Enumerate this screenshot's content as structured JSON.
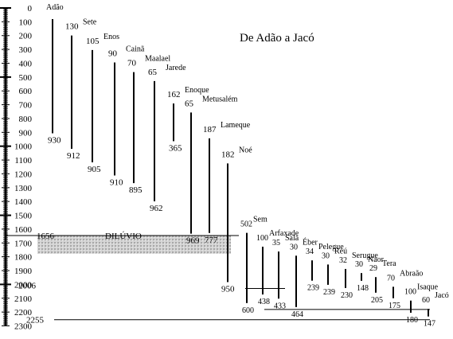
{
  "title": "De Adão a Jacó",
  "axis": {
    "ticks": [
      "0",
      "100",
      "200",
      "300",
      "400",
      "500",
      "600",
      "700",
      "800",
      "900",
      "1000",
      "1100",
      "1200",
      "1300",
      "1400",
      "1500",
      "1600",
      "1700",
      "1800",
      "1900",
      "2000",
      "2100",
      "2200",
      "2300"
    ]
  },
  "flood": {
    "label": "DILÚVIO",
    "year_label": "1656",
    "year": 1656,
    "zone_color": "#b8b8b8"
  },
  "markers": [
    {
      "label": "2006",
      "year": 2006
    },
    {
      "label": "2255",
      "year": 2255
    }
  ],
  "patriarchs": [
    {
      "name": "Adão",
      "birth": 0,
      "death": 930,
      "father_age": null,
      "lifespan_label": "930"
    },
    {
      "name": "Sete",
      "birth": 130,
      "death": 1042,
      "father_age": "130",
      "lifespan_label": "912"
    },
    {
      "name": "Enos",
      "birth": 235,
      "death": 1140,
      "father_age": "105",
      "lifespan_label": "905"
    },
    {
      "name": "Cainã",
      "birth": 325,
      "death": 1235,
      "father_age": "90",
      "lifespan_label": "910"
    },
    {
      "name": "Maalael",
      "birth": 395,
      "death": 1290,
      "father_age": "70",
      "lifespan_label": "895"
    },
    {
      "name": "Jarede",
      "birth": 460,
      "death": 1422,
      "father_age": "65",
      "lifespan_label": "962"
    },
    {
      "name": "Enoque",
      "birth": 622,
      "death": 987,
      "father_age": "162",
      "lifespan_label": "365"
    },
    {
      "name": "Metusalém",
      "birth": 687,
      "death": 1656,
      "father_age": "65",
      "lifespan_label": "969"
    },
    {
      "name": "Lameque",
      "birth": 874,
      "death": 1651,
      "father_age": "187",
      "lifespan_label": "777"
    },
    {
      "name": "Noé",
      "birth": 1056,
      "death": 2006,
      "father_age": "182",
      "lifespan_label": "950"
    },
    {
      "name": "Sem",
      "birth": 1558,
      "death": 2158,
      "father_age": "502",
      "lifespan_label": "600"
    },
    {
      "name": "Arfaxade",
      "birth": 1658,
      "death": 2096,
      "father_age": "100",
      "lifespan_label": "438"
    },
    {
      "name": "Salá",
      "birth": 1693,
      "death": 2126,
      "father_age": "35",
      "lifespan_label": "433"
    },
    {
      "name": "Éber",
      "birth": 1723,
      "death": 2187,
      "father_age": "30",
      "lifespan_label": "464"
    },
    {
      "name": "Pelegue",
      "birth": 1757,
      "death": 1996,
      "father_age": "34",
      "lifespan_label": "239"
    },
    {
      "name": "Reú",
      "birth": 1787,
      "death": 2026,
      "father_age": "30",
      "lifespan_label": "239"
    },
    {
      "name": "Serugue",
      "birth": 1819,
      "death": 2049,
      "father_age": "32",
      "lifespan_label": "230"
    },
    {
      "name": "Naor",
      "birth": 1849,
      "death": 1997,
      "father_age": "30",
      "lifespan_label": "148"
    },
    {
      "name": "Tera",
      "birth": 1878,
      "death": 2083,
      "father_age": "29",
      "lifespan_label": "205"
    },
    {
      "name": "Abraão",
      "birth": 1948,
      "death": 2123,
      "father_age": "70",
      "lifespan_label": "175"
    },
    {
      "name": "Isaque",
      "birth": 2048,
      "death": 2228,
      "father_age": "100",
      "lifespan_label": "180"
    },
    {
      "name": "Jacó",
      "birth": 2108,
      "death": 2255,
      "father_age": "60",
      "lifespan_label": "147"
    }
  ]
}
